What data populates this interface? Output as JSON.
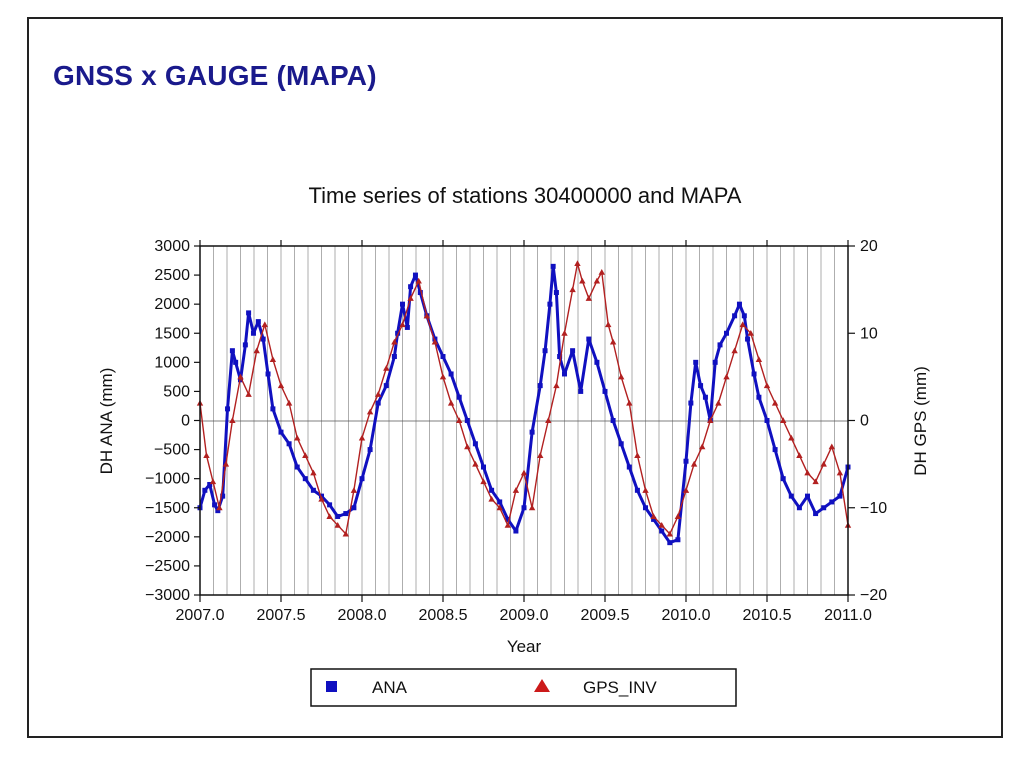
{
  "slide": {
    "title": "GNSS x GAUGE (MAPA)"
  },
  "chart_data": {
    "type": "line",
    "title": "Time series of stations 30400000 and MAPA",
    "xlabel": "Year",
    "ylabel": "DH ANA (mm)",
    "y2label": "DH GPS (mm)",
    "xlim": [
      2007.0,
      2011.0
    ],
    "ylim": [
      -3000,
      3000
    ],
    "y2lim": [
      -20,
      20
    ],
    "x_ticks": [
      "2007.0",
      "2007.5",
      "2008.0",
      "2008.5",
      "2009.0",
      "2009.5",
      "2010.0",
      "2010.5",
      "2011.0"
    ],
    "y_ticks": [
      "3000",
      "2500",
      "2000",
      "1500",
      "1000",
      "500",
      "0",
      "−500",
      "−1000",
      "−1500",
      "−2000",
      "−2500",
      "−3000"
    ],
    "y2_ticks": [
      "20",
      "10",
      "0",
      "−10",
      "−20"
    ],
    "grid": "vertical monthly",
    "legend_position": "bottom",
    "series": [
      {
        "name": "ANA",
        "axis": "left",
        "marker": "square",
        "color": "#1010c0",
        "x": [
          2007.0,
          2007.03,
          2007.06,
          2007.09,
          2007.11,
          2007.14,
          2007.17,
          2007.2,
          2007.22,
          2007.25,
          2007.28,
          2007.3,
          2007.33,
          2007.36,
          2007.39,
          2007.42,
          2007.45,
          2007.5,
          2007.55,
          2007.6,
          2007.65,
          2007.7,
          2007.75,
          2007.8,
          2007.85,
          2007.9,
          2007.95,
          2008.0,
          2008.05,
          2008.1,
          2008.15,
          2008.2,
          2008.22,
          2008.25,
          2008.28,
          2008.3,
          2008.33,
          2008.36,
          2008.4,
          2008.45,
          2008.5,
          2008.55,
          2008.6,
          2008.65,
          2008.7,
          2008.75,
          2008.8,
          2008.85,
          2008.9,
          2008.95,
          2009.0,
          2009.05,
          2009.1,
          2009.13,
          2009.16,
          2009.18,
          2009.2,
          2009.22,
          2009.25,
          2009.3,
          2009.35,
          2009.4,
          2009.45,
          2009.5,
          2009.55,
          2009.6,
          2009.65,
          2009.7,
          2009.75,
          2009.8,
          2009.85,
          2009.9,
          2009.95,
          2010.0,
          2010.03,
          2010.06,
          2010.09,
          2010.12,
          2010.15,
          2010.18,
          2010.21,
          2010.25,
          2010.3,
          2010.33,
          2010.36,
          2010.38,
          2010.42,
          2010.45,
          2010.5,
          2010.55,
          2010.6,
          2010.65,
          2010.7,
          2010.75,
          2010.8,
          2010.85,
          2010.9,
          2010.95,
          2011.0
        ],
        "y": [
          -1500,
          -1200,
          -1100,
          -1450,
          -1550,
          -1300,
          200,
          1200,
          1000,
          700,
          1300,
          1850,
          1500,
          1700,
          1400,
          800,
          200,
          -200,
          -400,
          -800,
          -1000,
          -1200,
          -1300,
          -1450,
          -1650,
          -1600,
          -1500,
          -1000,
          -500,
          300,
          600,
          1100,
          1500,
          2000,
          1600,
          2300,
          2500,
          2200,
          1800,
          1400,
          1100,
          800,
          400,
          0,
          -400,
          -800,
          -1200,
          -1400,
          -1700,
          -1900,
          -1500,
          -200,
          600,
          1200,
          2000,
          2650,
          2200,
          1100,
          800,
          1200,
          500,
          1400,
          1000,
          500,
          0,
          -400,
          -800,
          -1200,
          -1500,
          -1700,
          -1900,
          -2100,
          -2050,
          -700,
          300,
          1000,
          600,
          400,
          0,
          1000,
          1300,
          1500,
          1800,
          2000,
          1800,
          1400,
          800,
          400,
          0,
          -500,
          -1000,
          -1300,
          -1500,
          -1300,
          -1600,
          -1500,
          -1400,
          -1300,
          -800
        ]
      },
      {
        "name": "GPS_INV",
        "axis": "right",
        "marker": "triangle",
        "color": "#b22020",
        "x": [
          2007.0,
          2007.04,
          2007.08,
          2007.12,
          2007.16,
          2007.2,
          2007.25,
          2007.3,
          2007.35,
          2007.4,
          2007.45,
          2007.5,
          2007.55,
          2007.6,
          2007.65,
          2007.7,
          2007.75,
          2007.8,
          2007.85,
          2007.9,
          2007.95,
          2008.0,
          2008.05,
          2008.1,
          2008.15,
          2008.2,
          2008.25,
          2008.3,
          2008.35,
          2008.4,
          2008.45,
          2008.5,
          2008.55,
          2008.6,
          2008.65,
          2008.7,
          2008.75,
          2008.8,
          2008.85,
          2008.9,
          2008.95,
          2009.0,
          2009.05,
          2009.1,
          2009.15,
          2009.2,
          2009.25,
          2009.3,
          2009.33,
          2009.36,
          2009.4,
          2009.45,
          2009.48,
          2009.52,
          2009.55,
          2009.6,
          2009.65,
          2009.7,
          2009.75,
          2009.8,
          2009.85,
          2009.9,
          2009.95,
          2010.0,
          2010.05,
          2010.1,
          2010.15,
          2010.2,
          2010.25,
          2010.3,
          2010.35,
          2010.4,
          2010.45,
          2010.5,
          2010.55,
          2010.6,
          2010.65,
          2010.7,
          2010.75,
          2010.8,
          2010.85,
          2010.9,
          2010.95,
          2011.0
        ],
        "y": [
          2,
          -4,
          -7,
          -10,
          -5,
          0,
          5,
          3,
          8,
          11,
          7,
          4,
          2,
          -2,
          -4,
          -6,
          -9,
          -11,
          -12,
          -13,
          -8,
          -2,
          1,
          3,
          6,
          9,
          11,
          14,
          16,
          12,
          9,
          5,
          2,
          0,
          -3,
          -5,
          -7,
          -9,
          -10,
          -12,
          -8,
          -6,
          -10,
          -4,
          0,
          4,
          10,
          15,
          18,
          16,
          14,
          16,
          17,
          11,
          9,
          5,
          2,
          -4,
          -8,
          -11,
          -12,
          -13,
          -11,
          -8,
          -5,
          -3,
          0,
          2,
          5,
          8,
          11,
          10,
          7,
          4,
          2,
          0,
          -2,
          -4,
          -6,
          -7,
          -5,
          -3,
          -6,
          -12
        ]
      }
    ]
  }
}
